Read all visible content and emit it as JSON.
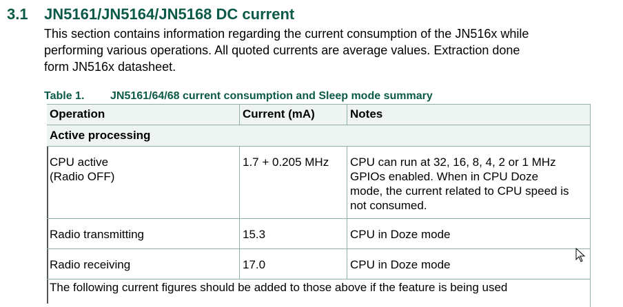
{
  "section": {
    "number": "3.1",
    "title": "JN5161/JN5164/JN5168 DC current",
    "paragraph": [
      "This section contains information regarding the current consumption of the JN516x while",
      "performing various operations. All quoted currents are average values. Extraction done",
      "form JN516x datasheet."
    ]
  },
  "table": {
    "label": "Table 1.",
    "caption": "JN5161/64/68 current consumption and Sleep mode summary",
    "headers": [
      "Operation",
      "Current (mA)",
      "Notes"
    ],
    "rows": [
      {
        "section": "Active processing"
      },
      {
        "cells": [
          [
            "CPU active",
            "(Radio OFF)"
          ],
          [
            "1.7 + 0.205 MHz"
          ],
          [
            "CPU can run at 32, 16, 8, 4, 2 or 1 MHz",
            "GPIOs enabled. When in CPU Doze",
            "mode, the current related to CPU speed is",
            "not consumed."
          ]
        ]
      },
      {
        "cells": [
          [
            "Radio transmitting"
          ],
          [
            "15.3"
          ],
          [
            "CPU in Doze mode"
          ]
        ]
      },
      {
        "cells": [
          [
            "Radio receiving"
          ],
          [
            "17.0"
          ],
          [
            "CPU in Doze mode"
          ]
        ]
      }
    ],
    "note": "The following current figures should be added to those above if the feature is being used"
  }
}
